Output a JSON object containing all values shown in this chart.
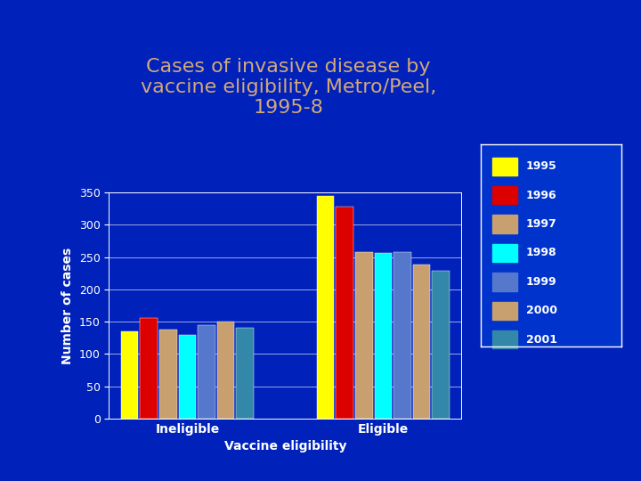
{
  "title": "Cases of invasive disease by\nvaccine eligibility, Metro/Peel,\n1995-8",
  "title_color": "#D4A878",
  "background_color": "#0022BB",
  "plot_bg_color": "#0022BB",
  "xlabel": "Vaccine eligibility",
  "ylabel": "Number of cases",
  "axis_label_color": "white",
  "tick_label_color": "white",
  "grid_color": "white",
  "years": [
    "1995",
    "1996",
    "1997",
    "1998",
    "1999",
    "2000",
    "2001"
  ],
  "bar_colors": [
    "#FFFF00",
    "#DD0000",
    "#C8A070",
    "#00FFFF",
    "#5577CC",
    "#C8A070",
    "#3388AA"
  ],
  "categories": [
    "Ineligible",
    "Eligible"
  ],
  "ineligible_values": [
    135,
    155,
    138,
    130,
    145,
    150,
    140
  ],
  "eligible_values": [
    345,
    328,
    258,
    256,
    258,
    238,
    228
  ],
  "ylim": [
    0,
    350
  ],
  "yticks": [
    0,
    50,
    100,
    150,
    200,
    250,
    300,
    350
  ],
  "legend_bg": "#0033CC",
  "legend_text_color": "white",
  "legend_edge_color": "white"
}
